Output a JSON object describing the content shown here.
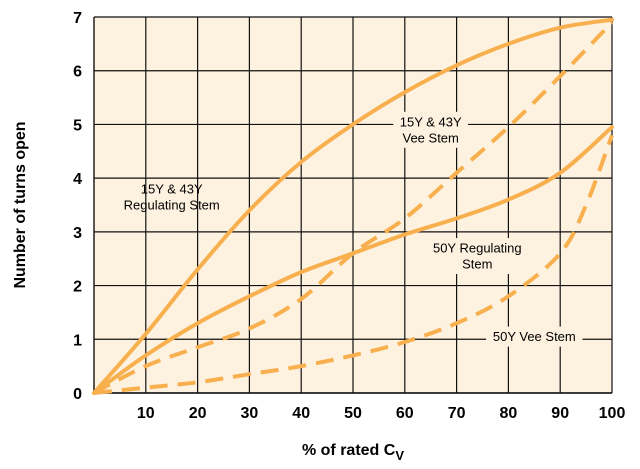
{
  "chart_data": {
    "type": "line",
    "xlabel_main": "% of rated C",
    "xlabel_sub": "V",
    "ylabel": "Number of turns open",
    "xlim": [
      0,
      100
    ],
    "ylim": [
      0,
      7
    ],
    "x_ticks": [
      "10",
      "20",
      "30",
      "40",
      "50",
      "60",
      "70",
      "80",
      "90",
      "100"
    ],
    "y_ticks": [
      "0",
      "1",
      "2",
      "3",
      "4",
      "5",
      "6",
      "7"
    ],
    "grid": true,
    "colors": {
      "background": "#fdf1e0",
      "grid": "#111111",
      "series": "#f8b04e"
    },
    "series": [
      {
        "style": "solid",
        "x": [
          0,
          10,
          20,
          30,
          40,
          50,
          60,
          70,
          80,
          90,
          100
        ],
        "y": [
          0,
          1.1,
          2.3,
          3.4,
          4.3,
          5.0,
          5.6,
          6.1,
          6.5,
          6.8,
          6.95
        ]
      },
      {
        "style": "dashed",
        "x": [
          0,
          10,
          20,
          30,
          40,
          50,
          60,
          70,
          80,
          90,
          100
        ],
        "y": [
          0,
          0.5,
          0.85,
          1.2,
          1.75,
          2.6,
          3.25,
          4.1,
          4.95,
          5.9,
          6.9
        ]
      },
      {
        "style": "solid",
        "x": [
          0,
          10,
          20,
          30,
          40,
          50,
          60,
          70,
          80,
          90,
          100
        ],
        "y": [
          0,
          0.7,
          1.3,
          1.8,
          2.25,
          2.6,
          2.95,
          3.25,
          3.6,
          4.1,
          4.95
        ]
      },
      {
        "style": "dashed",
        "x": [
          0,
          10,
          20,
          30,
          40,
          50,
          60,
          70,
          80,
          90,
          95,
          100
        ],
        "y": [
          0,
          0.1,
          0.2,
          0.35,
          0.5,
          0.7,
          0.95,
          1.3,
          1.8,
          2.6,
          3.5,
          4.8
        ]
      }
    ],
    "annotations": [
      {
        "lines": [
          "15Y & 43Y",
          "Regulating Stem"
        ],
        "x": 15,
        "y": 3.65,
        "boxed": false
      },
      {
        "lines": [
          "15Y & 43Y",
          "Vee Stem"
        ],
        "x": 65,
        "y": 4.9,
        "boxed": true
      },
      {
        "lines": [
          "50Y Regulating",
          "Stem"
        ],
        "x": 74,
        "y": 2.55,
        "boxed": true
      },
      {
        "lines": [
          "50Y Vee Stem"
        ],
        "x": 85,
        "y": 1.05,
        "boxed": true
      }
    ]
  }
}
